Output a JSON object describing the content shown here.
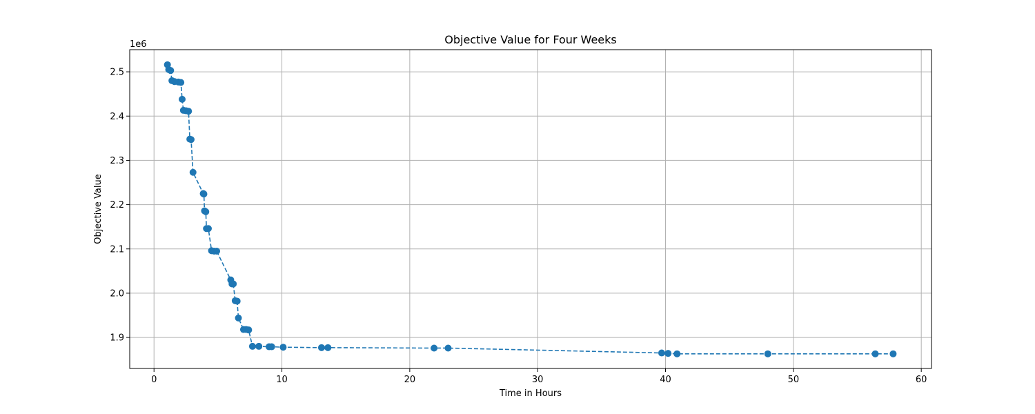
{
  "chart_data": {
    "type": "line",
    "title": "Objective Value for Four Weeks",
    "xlabel": "Time in Hours",
    "ylabel": "Objective Value",
    "y_offset_label": "1e6",
    "y_scale_factor": 1000000,
    "xlim": [
      -1.9,
      60.8
    ],
    "ylim": [
      1830000,
      2550000
    ],
    "x_ticks": [
      0,
      10,
      20,
      30,
      40,
      50,
      60
    ],
    "y_ticks": [
      1900000,
      2000000,
      2100000,
      2200000,
      2300000,
      2400000,
      2500000
    ],
    "y_tick_labels": [
      "1.9",
      "2.0",
      "2.1",
      "2.2",
      "2.3",
      "2.4",
      "2.5"
    ],
    "grid": true,
    "line_style": "dashed",
    "marker": "circle",
    "color": "#1f77b4",
    "series": [
      {
        "x": [
          1.05,
          1.15,
          1.3,
          1.4,
          1.6,
          1.9,
          2.1,
          2.2,
          2.3,
          2.5,
          2.7,
          2.8,
          2.9,
          3.05,
          3.85,
          3.9,
          3.95,
          4.05,
          4.1,
          4.25,
          4.5,
          4.7,
          4.9,
          6.0,
          6.1,
          6.2,
          6.35,
          6.5,
          6.6,
          7.0,
          7.2,
          7.4,
          7.7,
          8.2,
          9.0,
          9.2,
          10.1,
          13.1,
          13.6,
          21.9,
          23.0,
          39.7,
          40.2,
          40.9,
          48.0,
          56.4,
          57.8
        ],
        "y": [
          2516000,
          2505000,
          2503000,
          2480000,
          2478000,
          2477000,
          2476000,
          2438000,
          2413000,
          2412000,
          2411000,
          2348000,
          2347000,
          2273000,
          2225000,
          2224000,
          2186000,
          2184000,
          2146000,
          2146000,
          2096000,
          2095000,
          2095000,
          2030000,
          2021000,
          2021000,
          1983000,
          1982000,
          1944000,
          1918000,
          1918000,
          1917000,
          1880000,
          1880000,
          1879000,
          1879000,
          1878000,
          1877000,
          1877000,
          1876000,
          1876000,
          1865000,
          1864000,
          1863000,
          1863000,
          1863000,
          1863000
        ]
      }
    ]
  }
}
